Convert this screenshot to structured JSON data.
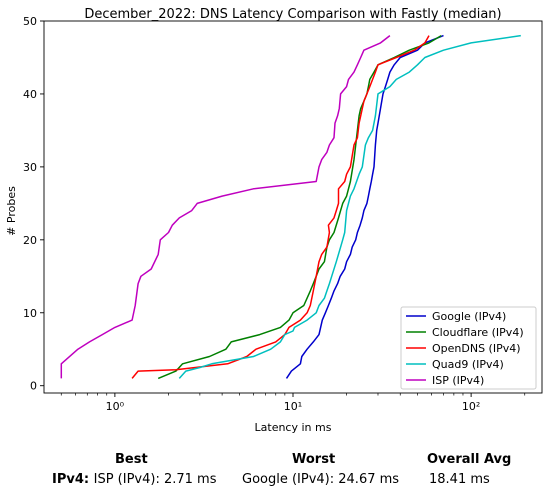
{
  "chart_data": {
    "type": "line",
    "title": "December_2022: DNS Latency Comparison with Fastly (median)",
    "xlabel": "Latency in ms",
    "ylabel": "# Probes",
    "xscale": "log",
    "xlim": [
      0.4,
      250
    ],
    "ylim": [
      -1,
      50
    ],
    "x_ticks": [
      {
        "value": 1,
        "label": "10⁰"
      },
      {
        "value": 10,
        "label": "10¹"
      },
      {
        "value": 100,
        "label": "10²"
      }
    ],
    "y_ticks": [
      0,
      10,
      20,
      30,
      40,
      50
    ],
    "grid": false,
    "legend_position": "bottom-right",
    "series": [
      {
        "name": "Google (IPv4)",
        "color": "#0000cc",
        "points": [
          [
            9.2,
            1
          ],
          [
            9.8,
            2
          ],
          [
            11.0,
            3
          ],
          [
            11.2,
            4
          ],
          [
            12.0,
            5
          ],
          [
            13.0,
            6
          ],
          [
            14.0,
            7
          ],
          [
            14.6,
            9
          ],
          [
            15.2,
            10
          ],
          [
            15.8,
            11
          ],
          [
            16.4,
            12
          ],
          [
            17.0,
            13
          ],
          [
            17.8,
            14
          ],
          [
            18.4,
            15
          ],
          [
            19.5,
            16
          ],
          [
            20.0,
            17
          ],
          [
            21.0,
            18
          ],
          [
            21.5,
            19
          ],
          [
            22.5,
            20
          ],
          [
            23.0,
            21
          ],
          [
            23.8,
            22
          ],
          [
            24.5,
            23
          ],
          [
            25.0,
            24
          ],
          [
            26.0,
            25
          ],
          [
            26.5,
            26
          ],
          [
            27.0,
            27
          ],
          [
            27.5,
            28
          ],
          [
            28.0,
            29
          ],
          [
            28.5,
            30
          ],
          [
            29.0,
            33
          ],
          [
            29.5,
            35
          ],
          [
            30.0,
            36
          ],
          [
            31.0,
            38
          ],
          [
            32.0,
            40
          ],
          [
            33.0,
            41
          ],
          [
            34.0,
            42
          ],
          [
            35.0,
            43
          ],
          [
            37.0,
            44
          ],
          [
            40.0,
            45
          ],
          [
            50.0,
            46
          ],
          [
            55.0,
            47
          ],
          [
            70.0,
            48
          ]
        ]
      },
      {
        "name": "Cloudflare (IPv4)",
        "color": "#008000",
        "points": [
          [
            1.75,
            1
          ],
          [
            2.2,
            2
          ],
          [
            2.4,
            3
          ],
          [
            3.4,
            4
          ],
          [
            4.2,
            5
          ],
          [
            4.5,
            6
          ],
          [
            6.5,
            7
          ],
          [
            8.5,
            8
          ],
          [
            9.5,
            9
          ],
          [
            10.0,
            10
          ],
          [
            11.5,
            11
          ],
          [
            12.5,
            13
          ],
          [
            13.0,
            14
          ],
          [
            13.5,
            15
          ],
          [
            14.0,
            16
          ],
          [
            15.0,
            17
          ],
          [
            15.5,
            19
          ],
          [
            16.0,
            20
          ],
          [
            17.0,
            21
          ],
          [
            18.0,
            23
          ],
          [
            18.5,
            24
          ],
          [
            19.0,
            25
          ],
          [
            20.0,
            26
          ],
          [
            20.5,
            27
          ],
          [
            21.0,
            28
          ],
          [
            22.0,
            31
          ],
          [
            22.5,
            33
          ],
          [
            23.0,
            35
          ],
          [
            23.5,
            37
          ],
          [
            24.0,
            38
          ],
          [
            25.0,
            39
          ],
          [
            26.0,
            40
          ],
          [
            26.5,
            41
          ],
          [
            27.0,
            42
          ],
          [
            28.5,
            43
          ],
          [
            30.0,
            44
          ],
          [
            37.0,
            45
          ],
          [
            45.0,
            46
          ],
          [
            58.0,
            47
          ],
          [
            68.0,
            48
          ]
        ]
      },
      {
        "name": "OpenDNS (IPv4)",
        "color": "#ff0000",
        "points": [
          [
            1.25,
            1
          ],
          [
            1.35,
            2
          ],
          [
            2.2,
            2.2
          ],
          [
            4.3,
            3
          ],
          [
            5.5,
            4
          ],
          [
            6.2,
            5
          ],
          [
            8.0,
            6
          ],
          [
            9.0,
            7
          ],
          [
            9.5,
            8
          ],
          [
            11.0,
            9
          ],
          [
            12.0,
            10
          ],
          [
            12.5,
            11
          ],
          [
            13.0,
            13
          ],
          [
            13.5,
            15
          ],
          [
            14.0,
            17
          ],
          [
            14.5,
            18
          ],
          [
            15.5,
            19
          ],
          [
            16.0,
            21
          ],
          [
            15.8,
            22
          ],
          [
            17.0,
            23
          ],
          [
            17.5,
            24
          ],
          [
            18.0,
            25
          ],
          [
            18.0,
            27
          ],
          [
            19.5,
            28
          ],
          [
            20.0,
            29
          ],
          [
            21.0,
            30
          ],
          [
            22.0,
            33
          ],
          [
            23.0,
            34
          ],
          [
            23.5,
            36
          ],
          [
            24.0,
            37
          ],
          [
            24.5,
            38
          ],
          [
            25.0,
            39
          ],
          [
            26.0,
            40
          ],
          [
            27.0,
            41
          ],
          [
            28.0,
            42
          ],
          [
            29.0,
            43
          ],
          [
            30.0,
            44
          ],
          [
            38.0,
            45
          ],
          [
            48.0,
            46
          ],
          [
            55.0,
            47
          ],
          [
            58.0,
            48
          ]
        ]
      },
      {
        "name": "Quad9 (IPv4)",
        "color": "#00bfbf",
        "points": [
          [
            2.3,
            1
          ],
          [
            2.5,
            2
          ],
          [
            3.0,
            2.5
          ],
          [
            3.5,
            3
          ],
          [
            6.0,
            4
          ],
          [
            7.5,
            5
          ],
          [
            8.5,
            6
          ],
          [
            9.0,
            7
          ],
          [
            10.0,
            7.5
          ],
          [
            10.2,
            8
          ],
          [
            12.0,
            9
          ],
          [
            13.5,
            10
          ],
          [
            14.0,
            11
          ],
          [
            15.0,
            12
          ],
          [
            15.5,
            13
          ],
          [
            16.0,
            14
          ],
          [
            16.5,
            15
          ],
          [
            17.5,
            17
          ],
          [
            18.5,
            19
          ],
          [
            19.0,
            20
          ],
          [
            19.5,
            21
          ],
          [
            20.0,
            24
          ],
          [
            21.0,
            26
          ],
          [
            22.0,
            27
          ],
          [
            23.5,
            29
          ],
          [
            24.5,
            30
          ],
          [
            25.5,
            33
          ],
          [
            26.5,
            34
          ],
          [
            28.0,
            35
          ],
          [
            29.0,
            37
          ],
          [
            30.0,
            40
          ],
          [
            35.0,
            41
          ],
          [
            38.0,
            42
          ],
          [
            45.0,
            43
          ],
          [
            50.0,
            44
          ],
          [
            55.0,
            45
          ],
          [
            70.0,
            46
          ],
          [
            100.0,
            47
          ],
          [
            190.0,
            48
          ]
        ]
      },
      {
        "name": "ISP (IPv4)",
        "color": "#bf00bf",
        "points": [
          [
            0.5,
            1
          ],
          [
            0.5,
            3
          ],
          [
            0.62,
            5
          ],
          [
            0.72,
            6
          ],
          [
            0.85,
            7
          ],
          [
            1.0,
            8
          ],
          [
            1.25,
            9
          ],
          [
            1.3,
            11
          ],
          [
            1.35,
            14
          ],
          [
            1.4,
            15
          ],
          [
            1.6,
            16
          ],
          [
            1.75,
            18
          ],
          [
            1.8,
            20
          ],
          [
            2.0,
            21
          ],
          [
            2.1,
            22
          ],
          [
            2.3,
            23
          ],
          [
            2.7,
            24
          ],
          [
            2.9,
            25
          ],
          [
            4.0,
            26
          ],
          [
            6.0,
            27
          ],
          [
            13.5,
            28
          ],
          [
            14.0,
            30
          ],
          [
            14.5,
            31
          ],
          [
            15.5,
            32
          ],
          [
            16.0,
            33
          ],
          [
            17.0,
            34
          ],
          [
            17.2,
            36
          ],
          [
            17.8,
            37
          ],
          [
            18.2,
            38
          ],
          [
            18.5,
            40
          ],
          [
            20.0,
            41
          ],
          [
            20.5,
            42
          ],
          [
            22.0,
            43
          ],
          [
            23.0,
            44
          ],
          [
            24.0,
            45
          ],
          [
            25.0,
            46
          ],
          [
            31.0,
            47
          ],
          [
            35.0,
            48
          ]
        ]
      }
    ]
  },
  "summary": {
    "best_header": "Best",
    "worst_header": "Worst",
    "avg_header": "Overall Avg",
    "row_label": "IPv4",
    "best_value": "ISP (IPv4): 2.71 ms",
    "worst_value": "Google (IPv4): 24.67 ms",
    "avg_value": "18.41 ms"
  }
}
